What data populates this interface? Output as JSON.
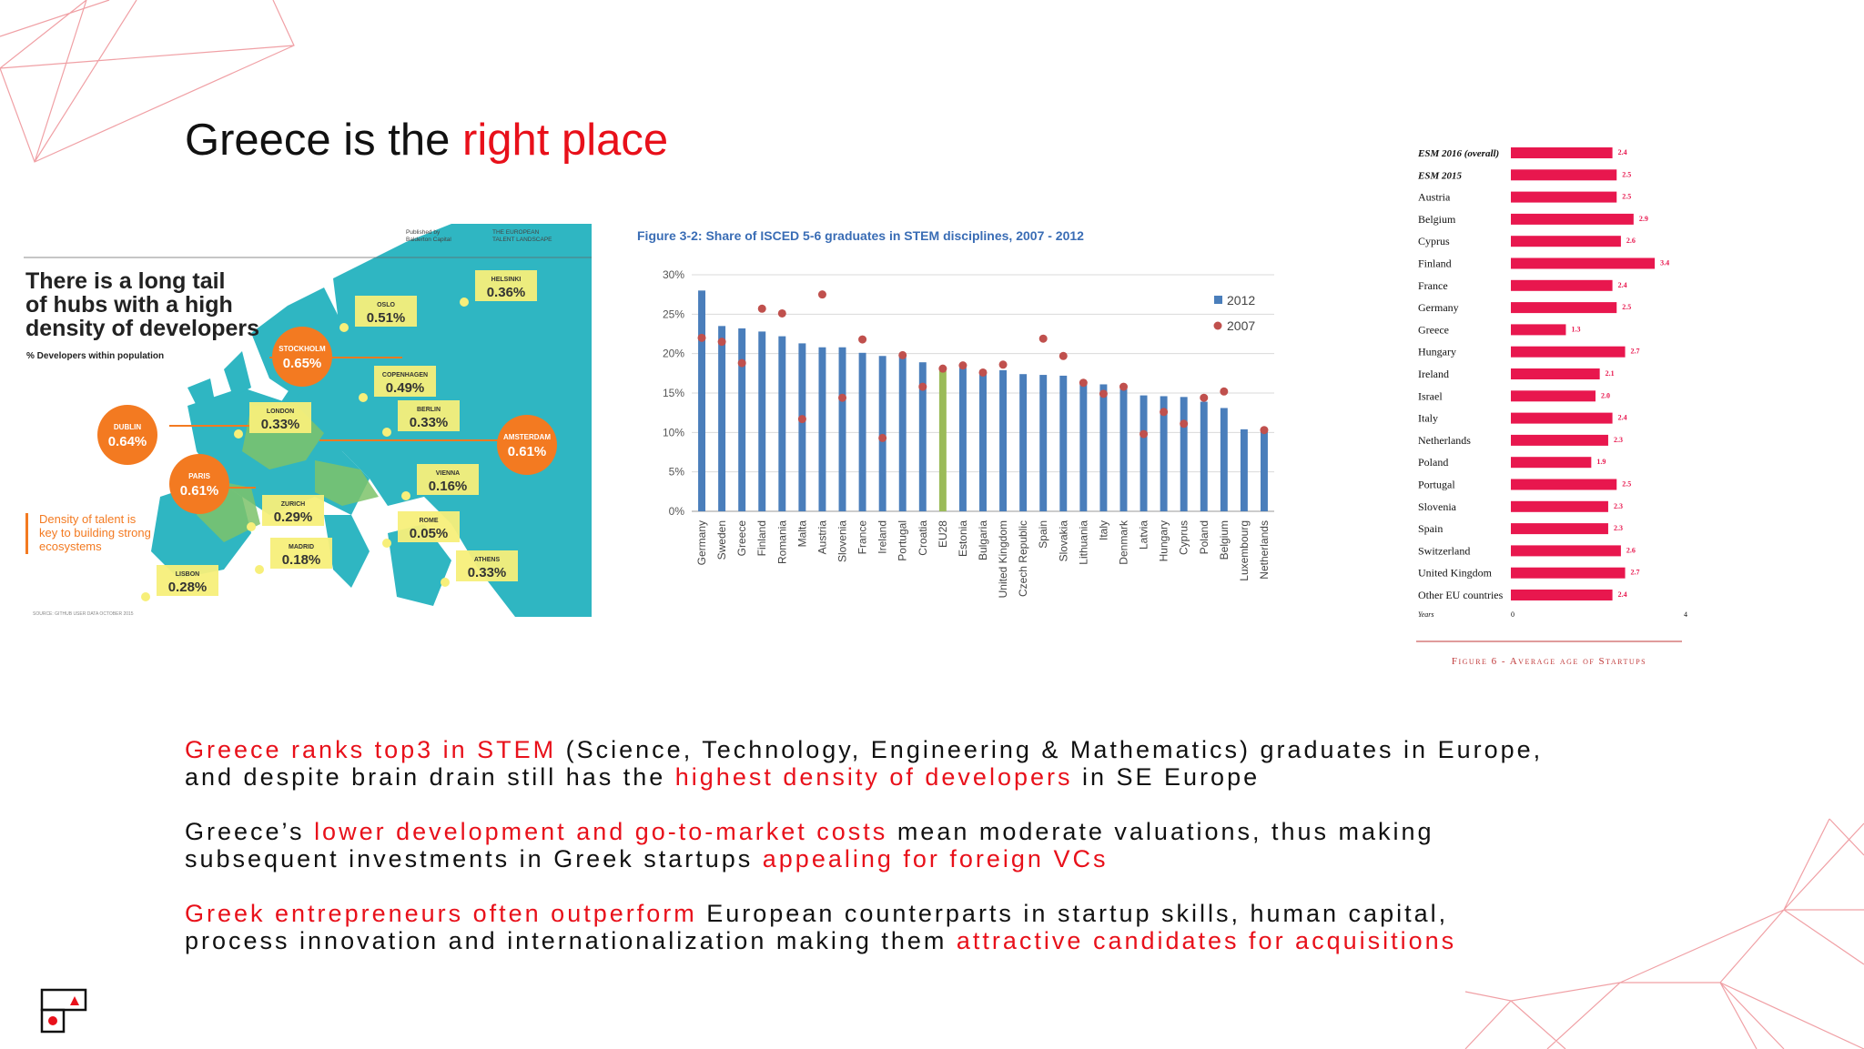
{
  "title": {
    "part1": "Greece is the ",
    "part2": "right place"
  },
  "map": {
    "published_by": "Published by",
    "publisher": "Balderton Capital",
    "report": "THE EUROPEAN",
    "report2": "TALENT LANDSCAPE",
    "headline": [
      "There is a long tail",
      "of hubs with a high",
      "density of developers"
    ],
    "subtitle": "% Developers within population",
    "legend": [
      "Density of talent is",
      "key to building strong",
      "ecosystems"
    ],
    "source": "SOURCE: GITHUB USER DATA OCTOBER 2015",
    "cities": [
      {
        "name": "HELSINKI",
        "value": "0.36%",
        "kind": "box"
      },
      {
        "name": "OSLO",
        "value": "0.51%",
        "kind": "box"
      },
      {
        "name": "STOCKHOLM",
        "value": "0.65%",
        "kind": "circle"
      },
      {
        "name": "COPENHAGEN",
        "value": "0.49%",
        "kind": "box"
      },
      {
        "name": "BERLIN",
        "value": "0.33%",
        "kind": "box"
      },
      {
        "name": "LONDON",
        "value": "0.33%",
        "kind": "box"
      },
      {
        "name": "DUBLIN",
        "value": "0.64%",
        "kind": "circle"
      },
      {
        "name": "AMSTERDAM",
        "value": "0.61%",
        "kind": "circle"
      },
      {
        "name": "PARIS",
        "value": "0.61%",
        "kind": "circle"
      },
      {
        "name": "VIENNA",
        "value": "0.16%",
        "kind": "box"
      },
      {
        "name": "ZURICH",
        "value": "0.29%",
        "kind": "box"
      },
      {
        "name": "ROME",
        "value": "0.05%",
        "kind": "box"
      },
      {
        "name": "MADRID",
        "value": "0.18%",
        "kind": "box"
      },
      {
        "name": "ATHENS",
        "value": "0.33%",
        "kind": "box"
      },
      {
        "name": "LISBON",
        "value": "0.28%",
        "kind": "box"
      }
    ]
  },
  "chart_data": [
    {
      "type": "bar",
      "title": "Figure 3-2: Share of ISCED 5-6 graduates in STEM disciplines, 2007 - 2012",
      "categories": [
        "Germany",
        "Sweden",
        "Greece",
        "Finland",
        "Romania",
        "Malta",
        "Austria",
        "Slovenia",
        "France",
        "Ireland",
        "Portugal",
        "Croatia",
        "EU28",
        "Estonia",
        "Bulgaria",
        "United Kingdom",
        "Czech Republic",
        "Spain",
        "Slovakia",
        "Lithuania",
        "Italy",
        "Denmark",
        "Latvia",
        "Hungary",
        "Cyprus",
        "Poland",
        "Belgium",
        "Luxembourg",
        "Netherlands"
      ],
      "series": [
        {
          "name": "2012",
          "kind": "bar",
          "color": "#4a7ebb",
          "values": [
            28,
            23.5,
            23.2,
            22.8,
            22.2,
            21.3,
            20.8,
            20.8,
            20.1,
            19.7,
            19.9,
            18.9,
            17.8,
            18.2,
            17.7,
            17.9,
            17.4,
            17.3,
            17.2,
            16.2,
            16.1,
            15.9,
            14.7,
            14.6,
            14.5,
            13.9,
            13.1,
            10.4,
            10.2
          ]
        },
        {
          "name": "2007",
          "kind": "dot",
          "color": "#c0504d",
          "values": [
            22,
            21.5,
            18.8,
            25.7,
            25.1,
            11.7,
            27.5,
            14.4,
            21.8,
            9.3,
            19.8,
            15.8,
            18.1,
            18.5,
            17.6,
            18.6,
            null,
            21.9,
            19.7,
            16.3,
            14.9,
            15.8,
            9.8,
            12.6,
            11.1,
            14.4,
            15.2,
            null,
            10.3
          ]
        }
      ],
      "highlight": {
        "category": "EU28",
        "color": "#9bbb59"
      },
      "ylim": [
        0,
        30
      ],
      "yticks": [
        "0%",
        "5%",
        "10%",
        "15%",
        "20%",
        "25%",
        "30%"
      ],
      "legend_position": "top-right",
      "grid": true
    },
    {
      "type": "bar",
      "orientation": "horizontal",
      "categories": [
        "ESM 2016 (overall)",
        "ESM 2015",
        "Austria",
        "Belgium",
        "Cyprus",
        "Finland",
        "France",
        "Germany",
        "Greece",
        "Hungary",
        "Ireland",
        "Israel",
        "Italy",
        "Netherlands",
        "Poland",
        "Portugal",
        "Slovenia",
        "Spain",
        "Switzerland",
        "United Kingdom",
        "Other EU countries"
      ],
      "values": [
        2.4,
        2.5,
        2.5,
        2.9,
        2.6,
        3.4,
        2.4,
        2.5,
        1.3,
        2.7,
        2.1,
        2.0,
        2.4,
        2.3,
        1.9,
        2.5,
        2.3,
        2.3,
        2.6,
        2.7,
        2.4
      ],
      "value_labels": [
        "2.4",
        "2.5",
        "2.5",
        "2.9",
        "2.6",
        "3.4",
        "2.4",
        "2.5",
        "1.3",
        "2.7",
        "2.1",
        "2.0",
        "2.4",
        "2.3",
        "1.9",
        "2.5",
        "2.3",
        "2.3",
        "2.6",
        "2.7",
        "2.4"
      ],
      "xlim": [
        0,
        4
      ],
      "xticks": [
        "0",
        "4"
      ],
      "xlabel": "Years",
      "caption": "Figure 6 - Average age of Startups",
      "color": "#e8174e"
    }
  ],
  "paragraphs": [
    {
      "lines": [
        [
          {
            "t": "Greece ranks top3 in STEM",
            "h": true
          },
          {
            "t": " (Science, Technology, Engineering & Mathematics) graduates in Europe,",
            "h": false
          }
        ],
        [
          {
            "t": "and despite brain drain still has the ",
            "h": false
          },
          {
            "t": "highest density of developers",
            "h": true
          },
          {
            "t": " in SE Europe",
            "h": false
          }
        ]
      ]
    },
    {
      "lines": [
        [
          {
            "t": "Greece’s ",
            "h": false
          },
          {
            "t": "lower development and go-to-market costs",
            "h": true
          },
          {
            "t": " mean moderate valuations, thus making",
            "h": false
          }
        ],
        [
          {
            "t": "subsequent investments in Greek startups ",
            "h": false
          },
          {
            "t": "appealing for foreign VCs",
            "h": true
          }
        ]
      ]
    },
    {
      "lines": [
        [
          {
            "t": "Greek entrepreneurs often outperform",
            "h": true
          },
          {
            "t": " European counterparts in startup skills, human capital,",
            "h": false
          }
        ],
        [
          {
            "t": "process innovation and internationalization making them ",
            "h": false
          },
          {
            "t": "attractive candidates for acquisitions",
            "h": true
          }
        ]
      ]
    }
  ],
  "colors": {
    "accent": "#e8101a",
    "map_sea": "#ffffff",
    "map_land": "#2ab3c0",
    "circle": "#f37a21",
    "box": "#f7ef7a"
  }
}
